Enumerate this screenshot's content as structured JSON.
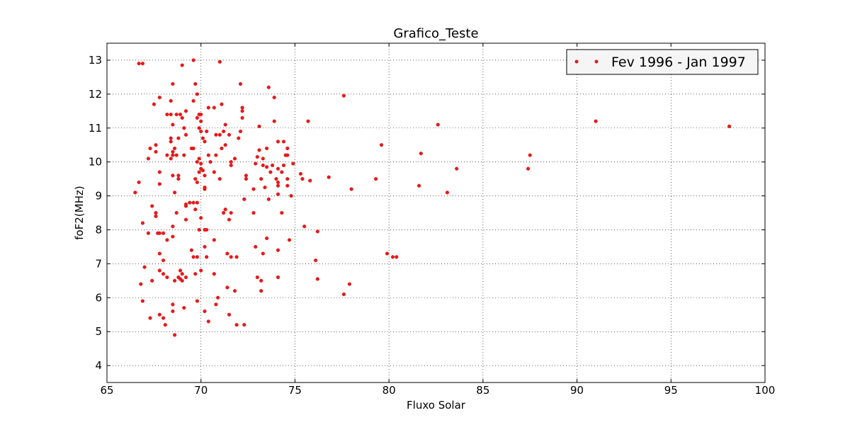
{
  "chart_data": {
    "type": "scatter",
    "title": "Grafico_Teste",
    "xlabel": "Fluxo Solar",
    "ylabel": "foF2(MHz)",
    "xlim": [
      65,
      100
    ],
    "ylim": [
      3.5,
      13.5
    ],
    "xticks": [
      65,
      70,
      75,
      80,
      85,
      90,
      95,
      100
    ],
    "yticks": [
      4,
      5,
      6,
      7,
      8,
      9,
      10,
      11,
      12,
      13
    ],
    "grid": true,
    "legend_position": "top-right",
    "marker_color": "#e51a1a",
    "series": [
      {
        "name": "Fev 1996 - Jan 1997",
        "points": [
          [
            66.7,
            12.9
          ],
          [
            69.6,
            13.0
          ],
          [
            71.0,
            12.95
          ],
          [
            69.0,
            12.85
          ],
          [
            68.5,
            12.3
          ],
          [
            69.7,
            12.3
          ],
          [
            72.1,
            12.3
          ],
          [
            73.6,
            12.2
          ],
          [
            77.6,
            11.95
          ],
          [
            67.8,
            11.9
          ],
          [
            69.8,
            12.0
          ],
          [
            73.9,
            11.9
          ],
          [
            67.5,
            11.7
          ],
          [
            71.1,
            11.7
          ],
          [
            69.6,
            11.8
          ],
          [
            68.4,
            11.8
          ],
          [
            70.4,
            11.6
          ],
          [
            70.7,
            11.6
          ],
          [
            72.2,
            11.6
          ],
          [
            72.2,
            11.5
          ],
          [
            68.2,
            11.4
          ],
          [
            69.2,
            11.5
          ],
          [
            68.7,
            11.4
          ],
          [
            68.4,
            11.4
          ],
          [
            69.9,
            11.4
          ],
          [
            70.0,
            11.4
          ],
          [
            68.9,
            11.4
          ],
          [
            69.0,
            11.3
          ],
          [
            72.2,
            11.3
          ],
          [
            69.8,
            11.3
          ],
          [
            68.5,
            11.1
          ],
          [
            73.9,
            11.2
          ],
          [
            75.7,
            11.2
          ],
          [
            82.6,
            11.1
          ],
          [
            91.0,
            11.2
          ],
          [
            98.1,
            11.05
          ],
          [
            71.3,
            11.1
          ],
          [
            70.0,
            11.2
          ],
          [
            69.1,
            11.0
          ],
          [
            69.9,
            11.0
          ],
          [
            70.0,
            10.9
          ],
          [
            70.3,
            10.9
          ],
          [
            71.2,
            10.9
          ],
          [
            72.1,
            10.9
          ],
          [
            73.1,
            11.05
          ],
          [
            74.1,
            10.6
          ],
          [
            74.4,
            10.6
          ],
          [
            70.8,
            10.8
          ],
          [
            71.0,
            10.8
          ],
          [
            71.5,
            10.8
          ],
          [
            68.4,
            10.7
          ],
          [
            68.8,
            10.7
          ],
          [
            69.2,
            10.8
          ],
          [
            70.1,
            10.7
          ],
          [
            70.2,
            10.6
          ],
          [
            72.0,
            10.7
          ],
          [
            66.9,
            12.9
          ],
          [
            68.2,
            10.2
          ],
          [
            67.3,
            10.4
          ],
          [
            67.6,
            10.5
          ],
          [
            67.6,
            10.3
          ],
          [
            68.4,
            10.6
          ],
          [
            69.6,
            10.4
          ],
          [
            69.5,
            10.4
          ],
          [
            68.6,
            10.4
          ],
          [
            68.5,
            10.3
          ],
          [
            71.1,
            10.4
          ],
          [
            71.3,
            10.5
          ],
          [
            73.1,
            10.35
          ],
          [
            73.5,
            10.4
          ],
          [
            74.6,
            10.4
          ],
          [
            74.5,
            10.2
          ],
          [
            74.6,
            10.2
          ],
          [
            79.6,
            10.5
          ],
          [
            81.7,
            10.25
          ],
          [
            87.5,
            10.2
          ],
          [
            69.1,
            10.2
          ],
          [
            70.4,
            10.2
          ],
          [
            70.8,
            10.2
          ],
          [
            67.2,
            10.1
          ],
          [
            68.5,
            10.2
          ],
          [
            68.7,
            10.2
          ],
          [
            68.4,
            10.1
          ],
          [
            69.9,
            10.1
          ],
          [
            71.6,
            10.0
          ],
          [
            71.8,
            10.1
          ],
          [
            73.0,
            10.15
          ],
          [
            73.3,
            10.1
          ],
          [
            69.8,
            10.0
          ],
          [
            70.0,
            9.95
          ],
          [
            70.5,
            10.0
          ],
          [
            71.6,
            9.9
          ],
          [
            72.9,
            9.95
          ],
          [
            73.3,
            9.9
          ],
          [
            74.4,
            9.9
          ],
          [
            74.9,
            9.95
          ],
          [
            73.5,
            9.85
          ],
          [
            73.8,
            9.9
          ],
          [
            74.1,
            9.8
          ],
          [
            83.6,
            9.8
          ],
          [
            87.4,
            9.8
          ],
          [
            70.0,
            9.8
          ],
          [
            69.9,
            9.7
          ],
          [
            70.1,
            9.75
          ],
          [
            70.2,
            9.6
          ],
          [
            70.7,
            9.7
          ],
          [
            72.4,
            9.6
          ],
          [
            73.7,
            9.7
          ],
          [
            74.3,
            9.7
          ],
          [
            67.8,
            9.7
          ],
          [
            68.5,
            9.6
          ],
          [
            68.8,
            9.5
          ],
          [
            69.7,
            9.5
          ],
          [
            71.0,
            9.5
          ],
          [
            72.4,
            9.5
          ],
          [
            73.2,
            9.5
          ],
          [
            74.0,
            9.5
          ],
          [
            74.6,
            9.5
          ],
          [
            75.3,
            9.65
          ],
          [
            75.4,
            9.5
          ],
          [
            75.8,
            9.45
          ],
          [
            76.8,
            9.55
          ],
          [
            79.3,
            9.5
          ],
          [
            69.8,
            9.4
          ],
          [
            68.8,
            9.6
          ],
          [
            66.7,
            9.4
          ],
          [
            67.8,
            9.35
          ],
          [
            74.1,
            9.4
          ],
          [
            74.1,
            9.3
          ],
          [
            81.6,
            9.3
          ],
          [
            70.2,
            9.2
          ],
          [
            70.2,
            9.25
          ],
          [
            72.8,
            9.2
          ],
          [
            73.4,
            9.25
          ],
          [
            74.6,
            9.3
          ],
          [
            78.0,
            9.2
          ],
          [
            66.5,
            9.1
          ],
          [
            68.6,
            9.1
          ],
          [
            74.1,
            9.05
          ],
          [
            83.1,
            9.1
          ],
          [
            72.3,
            8.9
          ],
          [
            73.6,
            8.9
          ],
          [
            74.8,
            9.0
          ],
          [
            69.4,
            8.8
          ],
          [
            69.2,
            8.75
          ],
          [
            69.6,
            8.8
          ],
          [
            69.8,
            8.8
          ],
          [
            67.4,
            8.7
          ],
          [
            69.2,
            8.7
          ],
          [
            71.3,
            8.6
          ],
          [
            71.2,
            8.5
          ],
          [
            69.7,
            8.6
          ],
          [
            67.6,
            8.5
          ],
          [
            67.6,
            8.4
          ],
          [
            68.7,
            8.5
          ],
          [
            72.8,
            8.5
          ],
          [
            74.3,
            8.5
          ],
          [
            71.6,
            8.5
          ],
          [
            70.0,
            8.35
          ],
          [
            69.2,
            8.3
          ],
          [
            71.5,
            8.3
          ],
          [
            66.9,
            8.2
          ],
          [
            68.5,
            8.1
          ],
          [
            70.2,
            8.0
          ],
          [
            69.9,
            8.0
          ],
          [
            70.3,
            8.0
          ],
          [
            75.5,
            8.1
          ],
          [
            76.2,
            7.95
          ],
          [
            67.2,
            7.9
          ],
          [
            67.7,
            7.9
          ],
          [
            67.8,
            7.9
          ],
          [
            68.0,
            7.9
          ],
          [
            68.5,
            7.8
          ],
          [
            68.2,
            7.7
          ],
          [
            70.7,
            7.7
          ],
          [
            73.5,
            7.75
          ],
          [
            74.7,
            7.7
          ],
          [
            70.2,
            7.5
          ],
          [
            72.9,
            7.5
          ],
          [
            74.1,
            7.4
          ],
          [
            69.5,
            7.4
          ],
          [
            67.8,
            7.3
          ],
          [
            69.6,
            7.2
          ],
          [
            69.8,
            7.2
          ],
          [
            70.3,
            7.2
          ],
          [
            71.4,
            7.3
          ],
          [
            71.6,
            7.2
          ],
          [
            71.9,
            7.2
          ],
          [
            73.3,
            7.3
          ],
          [
            79.9,
            7.3
          ],
          [
            80.2,
            7.2
          ],
          [
            80.4,
            7.2
          ],
          [
            68.0,
            7.1
          ],
          [
            76.1,
            7.1
          ],
          [
            67.0,
            6.9
          ],
          [
            67.8,
            6.8
          ],
          [
            68.0,
            6.7
          ],
          [
            68.9,
            6.8
          ],
          [
            69.0,
            6.7
          ],
          [
            70.0,
            6.8
          ],
          [
            69.7,
            6.7
          ],
          [
            70.7,
            6.7
          ],
          [
            68.2,
            6.6
          ],
          [
            68.6,
            6.5
          ],
          [
            68.8,
            6.6
          ],
          [
            68.9,
            6.55
          ],
          [
            69.2,
            6.6
          ],
          [
            69.0,
            6.5
          ],
          [
            73.0,
            6.6
          ],
          [
            73.2,
            6.5
          ],
          [
            74.1,
            6.6
          ],
          [
            76.2,
            6.55
          ],
          [
            66.8,
            6.4
          ],
          [
            67.4,
            6.5
          ],
          [
            71.4,
            6.3
          ],
          [
            71.8,
            6.2
          ],
          [
            73.2,
            6.2
          ],
          [
            77.9,
            6.4
          ],
          [
            77.6,
            6.1
          ],
          [
            70.9,
            6.0
          ],
          [
            66.9,
            5.9
          ],
          [
            69.8,
            5.9
          ],
          [
            70.8,
            5.8
          ],
          [
            68.5,
            5.8
          ],
          [
            69.1,
            5.7
          ],
          [
            68.5,
            5.6
          ],
          [
            70.2,
            5.6
          ],
          [
            71.5,
            5.5
          ],
          [
            67.8,
            5.5
          ],
          [
            68.0,
            5.4
          ],
          [
            67.3,
            5.4
          ],
          [
            70.4,
            5.3
          ],
          [
            68.1,
            5.2
          ],
          [
            71.9,
            5.2
          ],
          [
            72.3,
            5.2
          ],
          [
            68.6,
            4.9
          ]
        ]
      }
    ]
  }
}
